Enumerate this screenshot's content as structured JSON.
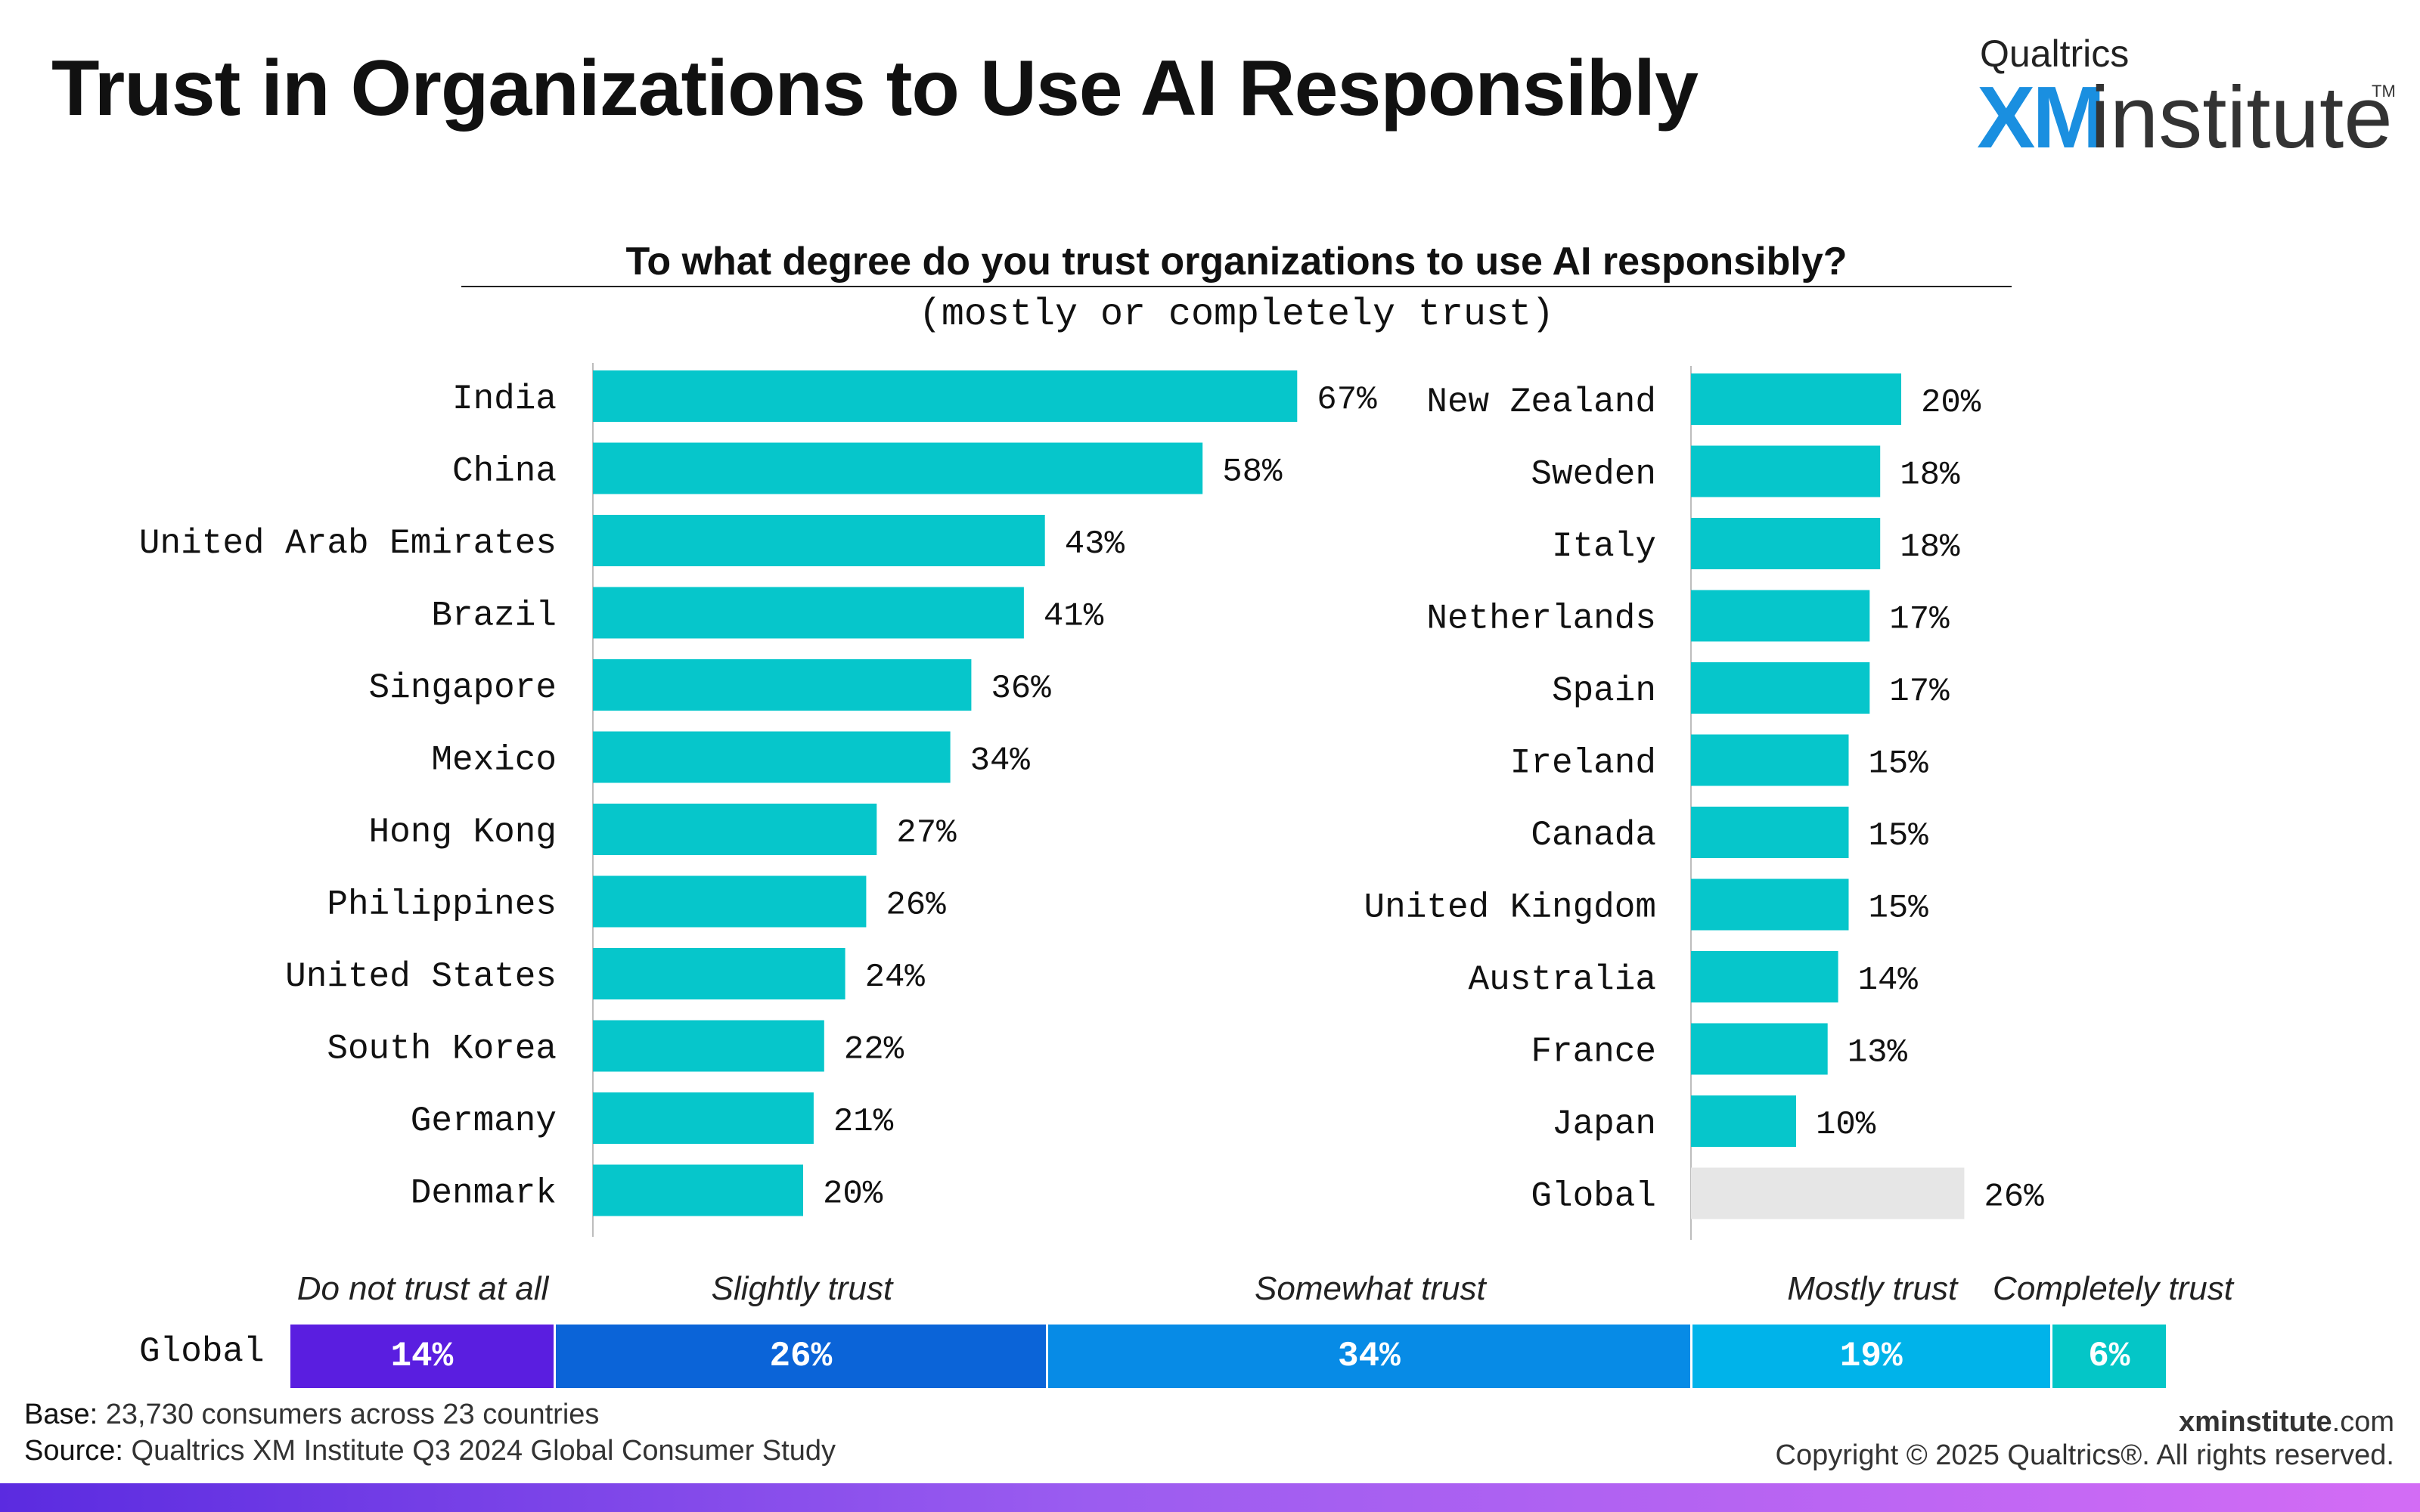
{
  "header": {
    "title": "Trust in Organizations to Use AI Responsibly",
    "logo": {
      "brand": "Qualtrics",
      "xm": "XM",
      "institute": "institute",
      "tm": "TM"
    }
  },
  "chart_data": [
    {
      "type": "bar",
      "orientation": "horizontal",
      "title": "To what degree do you trust organizations to use AI responsibly?",
      "subtitle": "(mostly or completely trust)",
      "categories": [
        "India",
        "China",
        "United Arab Emirates",
        "Brazil",
        "Singapore",
        "Mexico",
        "Hong Kong",
        "Philippines",
        "United States",
        "South Korea",
        "Germany",
        "Denmark",
        "New Zealand",
        "Sweden",
        "Italy",
        "Netherlands",
        "Spain",
        "Ireland",
        "Canada",
        "United Kingdom",
        "Australia",
        "France",
        "Japan",
        "Global"
      ],
      "values": [
        67,
        58,
        43,
        41,
        36,
        34,
        27,
        26,
        24,
        22,
        21,
        20,
        20,
        18,
        18,
        17,
        17,
        15,
        15,
        15,
        14,
        13,
        10,
        26
      ],
      "value_suffix": "%",
      "xlim": [
        0,
        100
      ],
      "layout": "two columns of 12 bars",
      "highlight": {
        "category": "Global",
        "color": "#e6e6e6"
      },
      "bar_color": "#06c6cb"
    },
    {
      "type": "bar",
      "orientation": "stacked-horizontal",
      "row_label": "Global",
      "categories": [
        "Do not trust at all",
        "Slightly trust",
        "Somewhat trust",
        "Mostly trust",
        "Completely trust"
      ],
      "values": [
        14,
        26,
        34,
        19,
        6
      ],
      "value_suffix": "%",
      "colors": [
        "#5a1ee0",
        "#0b64d8",
        "#078be6",
        "#00b3ea",
        "#04c6c7"
      ]
    }
  ],
  "footer": {
    "base_label": "Base:",
    "base_text": "23,730 consumers across 23 countries",
    "source_label": "Source:",
    "source_text": "Qualtrics XM Institute Q3 2024 Global Consumer Study",
    "site_bold": "xminstitute",
    "site_rest": ".com",
    "copyright": "Copyright © 2025 Qualtrics®. All rights reserved."
  }
}
